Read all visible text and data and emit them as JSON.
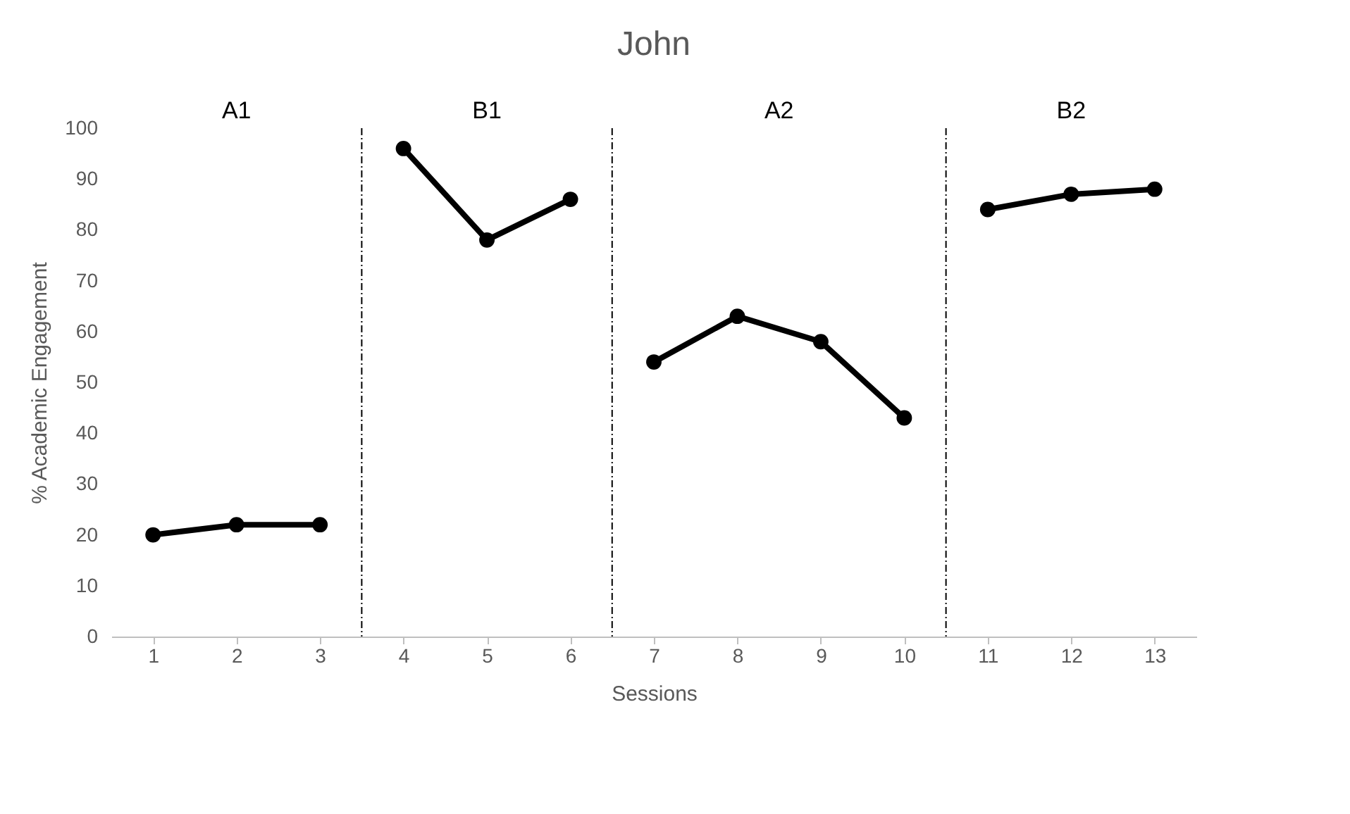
{
  "chart_data": {
    "type": "line",
    "title": "John",
    "xlabel": "Sessions",
    "ylabel": "% Academic Engagement",
    "xlim": [
      0.5,
      13.5
    ],
    "xticks": [
      1,
      2,
      3,
      4,
      5,
      6,
      7,
      8,
      9,
      10,
      11,
      12,
      13
    ],
    "ylim": [
      0,
      100
    ],
    "yticks": [
      0,
      10,
      20,
      30,
      40,
      50,
      60,
      70,
      80,
      90,
      100
    ],
    "series": [
      {
        "color": "#000000",
        "x": [
          1,
          2,
          3
        ],
        "values": [
          20,
          22,
          22
        ]
      },
      {
        "color": "#000000",
        "x": [
          4,
          5,
          6
        ],
        "values": [
          96,
          78,
          86
        ]
      },
      {
        "color": "#000000",
        "x": [
          7,
          8,
          9,
          10
        ],
        "values": [
          54,
          63,
          58,
          43
        ]
      },
      {
        "color": "#000000",
        "x": [
          11,
          12,
          13
        ],
        "values": [
          84,
          87,
          88
        ]
      }
    ],
    "ref_lines": [
      {
        "axis": "x",
        "value": 3.5,
        "color": "#000000",
        "line_style": "dashed"
      },
      {
        "axis": "x",
        "value": 6.5,
        "color": "#000000",
        "line_style": "dashed"
      },
      {
        "axis": "x",
        "value": 10.5,
        "color": "#000000",
        "line_style": "dashed"
      }
    ],
    "annotations": [
      "A1",
      "B1",
      "A2",
      "B2"
    ],
    "marker": "circle",
    "line_style": "solid",
    "grid": false
  }
}
